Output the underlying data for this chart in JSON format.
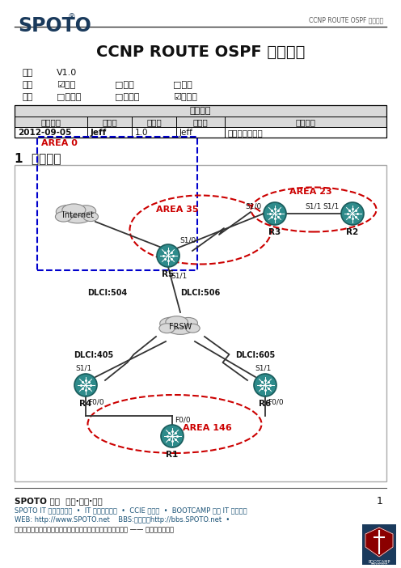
{
  "title": "CCNP ROUTE OSPF 综合实验",
  "header_title": "SPOTO",
  "header_reg": "®",
  "header_subtitle": "CCNP ROUTE OSPF 综合实验",
  "version_label": "版本",
  "version_value": "V1.0",
  "secret_label": "密级",
  "secret_options": [
    "☑开放",
    "□内部",
    "□机密"
  ],
  "type_label": "类型",
  "type_options": [
    "□讨论版",
    "□测试版",
    "☑正式版"
  ],
  "revision_title": "修订记录",
  "revision_headers": [
    "修订日期",
    "修订人",
    "版本号",
    "审核人",
    "修订说明"
  ],
  "revision_data": [
    [
      "2012-09-05",
      "Jeff",
      "1.0",
      "Jeff",
      "文档模板规范化"
    ]
  ],
  "section_title": "1  实验拓扑",
  "footer_bold": "SPOTO 全球  培训·项目·人才",
  "footer_line2": "SPOTO IT 人才培训机构  •  IT 人才解决方案  •  CCIE 实验室  •  BOOTCAMP 全真 IT 项目实战",
  "footer_line3": "WEB: http://www.SPOTO.net    BBS:（网络）http://bbs.SPOTO.net  •",
  "footer_line4": "以伙伴关系帮助客户成功，帮助员工成功，帮助合作伙伴成功。 —— 我们共创未来！",
  "page_number": "1",
  "bg_color": "#ffffff",
  "header_color": "#1a3a5c",
  "table_header_bg": "#d9d9d9",
  "table_border": "#000000",
  "footer_color": "#1a5276",
  "area0_color": "#0000cc",
  "area35_color": "#cc0000",
  "area23_color": "#cc0000",
  "area146_color": "#cc0000",
  "router_color": "#2e8b8b",
  "router_edge": "#1a5c5c",
  "cloud_color": "#d8d8d8",
  "cloud_edge": "#888888",
  "line_color": "#333333",
  "dlci_color": "#111111"
}
